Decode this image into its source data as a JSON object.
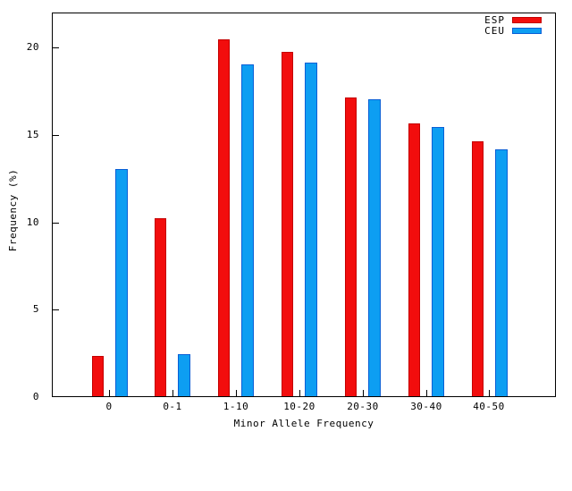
{
  "chart_data": {
    "type": "bar",
    "title": "",
    "xlabel": "Minor Allele Frequency",
    "ylabel": "Frequency (%)",
    "categories": [
      "0",
      "0-1",
      "1-10",
      "10-20",
      "20-30",
      "30-40",
      "40-50"
    ],
    "series": [
      {
        "name": "ESP",
        "color": "#f20d0d",
        "border_color": "#c40000",
        "values": [
          2.3,
          10.2,
          20.4,
          19.7,
          17.1,
          15.6,
          14.6
        ]
      },
      {
        "name": "CEU",
        "color": "#0d9ef2",
        "border_color": "#0a5fd6",
        "values": [
          13.0,
          2.4,
          19.0,
          19.1,
          17.0,
          15.4,
          14.1
        ]
      }
    ],
    "ylim": [
      0,
      22
    ],
    "yticks": [
      0,
      5,
      10,
      15,
      20
    ],
    "grid": false,
    "legend_position": "top-right",
    "axis_color": "#000000",
    "background_color": "#ffffff"
  }
}
